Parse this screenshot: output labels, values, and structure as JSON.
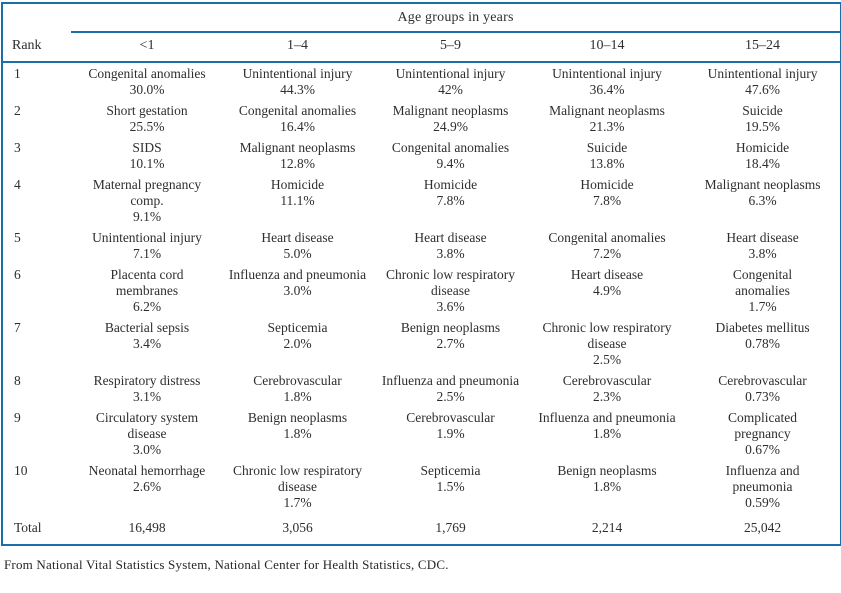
{
  "table": {
    "age_header": "Age groups in years",
    "columns": [
      "Rank",
      "<1",
      "1–4",
      "5–9",
      "10–14",
      "15–24"
    ],
    "rows": [
      {
        "rank": "1",
        "cells": [
          {
            "name": "Congenital anomalies",
            "pct": "30.0%"
          },
          {
            "name": "Unintentional injury",
            "pct": "44.3%"
          },
          {
            "name": "Unintentional injury",
            "pct": "42%"
          },
          {
            "name": "Unintentional injury",
            "pct": "36.4%"
          },
          {
            "name": "Unintentional injury",
            "pct": "47.6%"
          }
        ]
      },
      {
        "rank": "2",
        "cells": [
          {
            "name": "Short gestation",
            "pct": "25.5%"
          },
          {
            "name": "Congenital anomalies",
            "pct": "16.4%"
          },
          {
            "name": "Malignant neoplasms",
            "pct": "24.9%"
          },
          {
            "name": "Malignant neoplasms",
            "pct": "21.3%"
          },
          {
            "name": "Suicide",
            "pct": "19.5%"
          }
        ]
      },
      {
        "rank": "3",
        "cells": [
          {
            "name": "SIDS",
            "pct": "10.1%"
          },
          {
            "name": "Malignant neoplasms",
            "pct": "12.8%"
          },
          {
            "name": "Congenital anomalies",
            "pct": "9.4%"
          },
          {
            "name": "Suicide",
            "pct": "13.8%"
          },
          {
            "name": "Homicide",
            "pct": "18.4%"
          }
        ]
      },
      {
        "rank": "4",
        "cells": [
          {
            "name": "Maternal pregnancy comp.",
            "pct": "9.1%"
          },
          {
            "name": "Homicide",
            "pct": "11.1%"
          },
          {
            "name": "Homicide",
            "pct": "7.8%"
          },
          {
            "name": "Homicide",
            "pct": "7.8%"
          },
          {
            "name": "Malignant neoplasms",
            "pct": "6.3%"
          }
        ]
      },
      {
        "rank": "5",
        "cells": [
          {
            "name": "Unintentional injury",
            "pct": "7.1%"
          },
          {
            "name": "Heart disease",
            "pct": "5.0%"
          },
          {
            "name": "Heart disease",
            "pct": "3.8%"
          },
          {
            "name": "Congenital anomalies",
            "pct": "7.2%"
          },
          {
            "name": "Heart disease",
            "pct": "3.8%"
          }
        ]
      },
      {
        "rank": "6",
        "cells": [
          {
            "name": "Placenta cord membranes",
            "pct": "6.2%"
          },
          {
            "name": "Influenza and pneumonia",
            "pct": "3.0%"
          },
          {
            "name": "Chronic low respiratory disease",
            "pct": "3.6%"
          },
          {
            "name": "Heart disease",
            "pct": "4.9%"
          },
          {
            "name": "Congenital anomalies",
            "pct": "1.7%"
          }
        ]
      },
      {
        "rank": "7",
        "cells": [
          {
            "name": "Bacterial sepsis",
            "pct": "3.4%"
          },
          {
            "name": "Septicemia",
            "pct": "2.0%"
          },
          {
            "name": "Benign neoplasms",
            "pct": "2.7%"
          },
          {
            "name": "Chronic low respiratory disease",
            "pct": "2.5%"
          },
          {
            "name": "Diabetes mellitus",
            "pct": "0.78%"
          }
        ]
      },
      {
        "rank": "8",
        "cells": [
          {
            "name": "Respiratory distress",
            "pct": "3.1%"
          },
          {
            "name": "Cerebrovascular",
            "pct": "1.8%"
          },
          {
            "name": "Influenza and pneumonia",
            "pct": "2.5%"
          },
          {
            "name": "Cerebrovascular",
            "pct": "2.3%"
          },
          {
            "name": "Cerebrovascular",
            "pct": "0.73%"
          }
        ]
      },
      {
        "rank": "9",
        "cells": [
          {
            "name": "Circulatory system disease",
            "pct": "3.0%"
          },
          {
            "name": "Benign neoplasms",
            "pct": "1.8%"
          },
          {
            "name": "Cerebrovascular",
            "pct": "1.9%"
          },
          {
            "name": "Influenza and pneumonia",
            "pct": "1.8%"
          },
          {
            "name": "Complicated pregnancy",
            "pct": "0.67%"
          }
        ]
      },
      {
        "rank": "10",
        "cells": [
          {
            "name": "Neonatal hemorrhage",
            "pct": "2.6%"
          },
          {
            "name": "Chronic low respiratory disease",
            "pct": "1.7%"
          },
          {
            "name": "Septicemia",
            "pct": "1.5%"
          },
          {
            "name": "Benign neoplasms",
            "pct": "1.8%"
          },
          {
            "name": "Influenza and pneumonia",
            "pct": "0.59%"
          }
        ]
      }
    ],
    "total_label": "Total",
    "totals": [
      "16,498",
      "3,056",
      "1,769",
      "2,214",
      "25,042"
    ]
  },
  "footer": {
    "source": "From National Vital Statistics System, National Center for Health Statistics, CDC."
  },
  "colors": {
    "rule_blue": "#1b6fa9",
    "text": "#2e2e2e"
  }
}
